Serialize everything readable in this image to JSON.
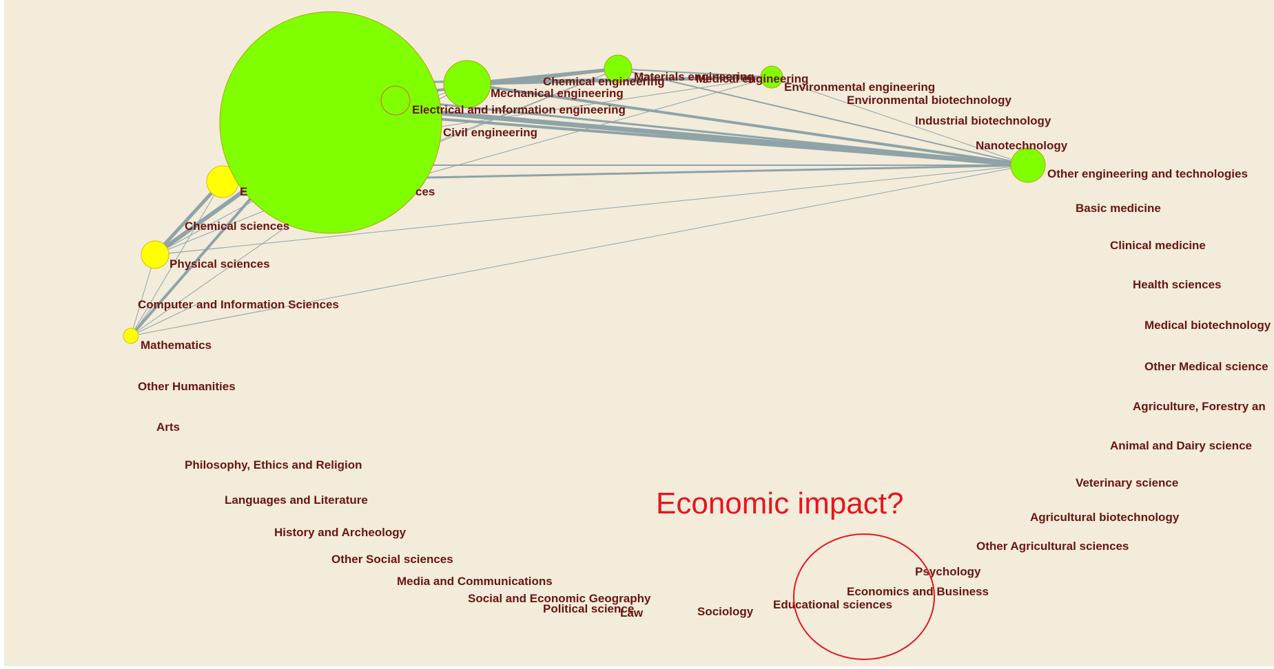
{
  "diagram": {
    "background": "#f3ecdb",
    "edge_color": "#8fa3a8",
    "label_color": "#6b1410",
    "colors": {
      "engineering": "#7fff00",
      "natural": "#ffff00",
      "annotation": "#e8141e"
    },
    "labels": {
      "chemical_engineering": "Chemical engineering",
      "materials_engineering": "Materials engineering",
      "medical_engineering": "Medical engineering",
      "environmental_engineering": "Environmental engineering",
      "mechanical_engineering": "Mechanical engineering",
      "environmental_biotechnology": "Environmental biotechnology",
      "electrical_engineering": "Electrical and information engineering",
      "industrial_biotechnology": "Industrial biotechnology",
      "civil_engineering": "Civil engineering",
      "nanotechnology": "Nanotechnology",
      "other_engineering": "Other engineering and technologies",
      "biological_sciences_fragment": "ces",
      "earth_sciences_fragment": "E",
      "chemical_sciences": "Chemical sciences",
      "basic_medicine": "Basic medicine",
      "physical_sciences": "Physical sciences",
      "clinical_medicine": "Clinical medicine",
      "health_sciences": "Health sciences",
      "computer_sciences": "Computer and Information Sciences",
      "medical_biotechnology": "Medical biotechnology",
      "mathematics": "Mathematics",
      "other_medical": "Other Medical science",
      "other_humanities": "Other Humanities",
      "agriculture": "Agriculture, Forestry an",
      "arts": "Arts",
      "animal_dairy": "Animal and Dairy science",
      "philosophy": "Philosophy, Ethics and Religion",
      "veterinary": "Veterinary science",
      "languages": "Languages and Literature",
      "agricultural_biotech": "Agricultural biotechnology",
      "history": "History and Archeology",
      "other_agricultural": "Other Agricultural sciences",
      "other_social": "Other Social sciences",
      "psychology": "Psychology",
      "media": "Media and Communications",
      "economics": "Economics and Business",
      "geography": "Social and Economic Geography",
      "educational": "Educational sciences",
      "political": "Political science",
      "law": "Law",
      "sociology": "Sociology"
    },
    "annotation": "Economic impact?"
  }
}
